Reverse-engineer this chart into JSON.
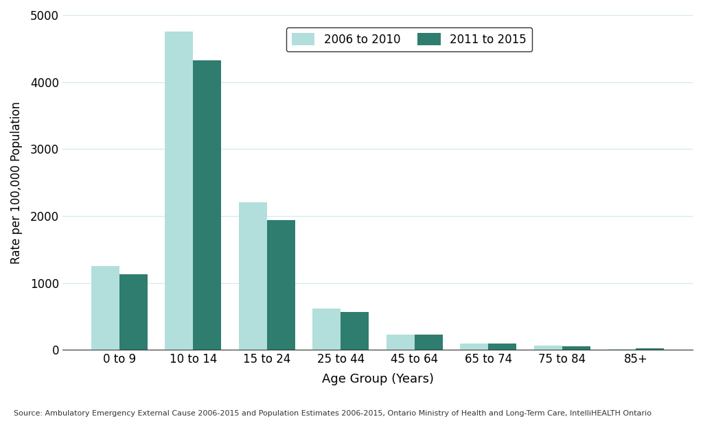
{
  "categories": [
    "0 to 9",
    "10 to 14",
    "15 to 24",
    "25 to 44",
    "45 to 64",
    "65 to 74",
    "75 to 84",
    "85+"
  ],
  "values_2006_2010": [
    1250,
    4750,
    2200,
    620,
    230,
    95,
    65,
    15
  ],
  "values_2011_2015": [
    1130,
    4320,
    1940,
    570,
    230,
    90,
    55,
    20
  ],
  "color_2006_2010": "#b2dfdb",
  "color_2011_2015": "#2e7d6e",
  "ylabel": "Rate per 100,000 Population",
  "xlabel": "Age Group (Years)",
  "legend_label_1": "2006 to 2010",
  "legend_label_2": "2011 to 2015",
  "ylim": [
    0,
    5000
  ],
  "yticks": [
    0,
    1000,
    2000,
    3000,
    4000,
    5000
  ],
  "source_text": "Source: Ambulatory Emergency External Cause 2006-2015 and Population Estimates 2006-2015, Ontario Ministry of Health and Long-Term Care, IntelliHEALTH Ontario",
  "bar_width": 0.38,
  "background_color": "#ffffff",
  "grid_color": "#d0e8e8"
}
